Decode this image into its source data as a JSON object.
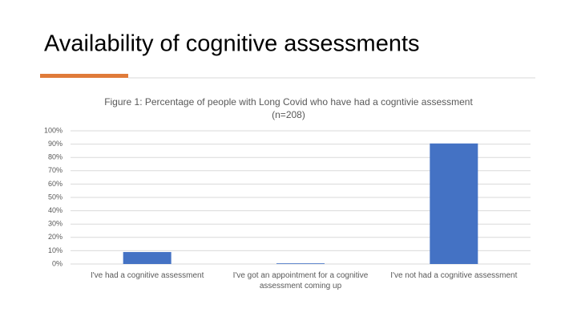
{
  "slide_title": "Availability of cognitive assessments",
  "chart_data": {
    "type": "bar",
    "title": "Figure 1: Percentage of people with Long Covid who have had a cogntivie assessment",
    "subtitle": "(n=208)",
    "categories": [
      "I've had a cognitive assessment",
      "I've got an appointment for a cognitive assessment coming up",
      "I've not had a cognitive assessment"
    ],
    "values": [
      9,
      0.5,
      90.5
    ],
    "color": "#4472c4",
    "ylim": [
      0,
      100
    ],
    "yticks": [
      {
        "value": 0,
        "label": "0%"
      },
      {
        "value": 10,
        "label": "10%"
      },
      {
        "value": 20,
        "label": "20%"
      },
      {
        "value": 30,
        "label": "30%"
      },
      {
        "value": 40,
        "label": "40%"
      },
      {
        "value": 50,
        "label": "50%"
      },
      {
        "value": 60,
        "label": "60%"
      },
      {
        "value": 70,
        "label": "70%"
      },
      {
        "value": 80,
        "label": "80%"
      },
      {
        "value": 90,
        "label": "90%"
      },
      {
        "value": 100,
        "label": "100%"
      }
    ],
    "grid": true
  }
}
